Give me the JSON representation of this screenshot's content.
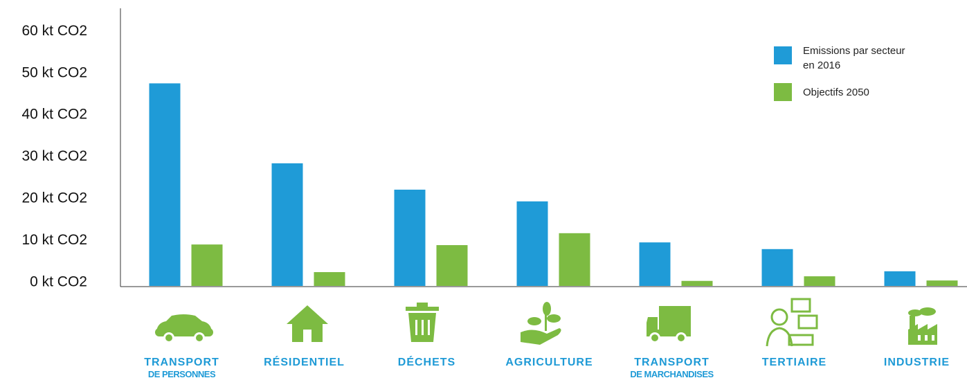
{
  "chart_data": {
    "type": "bar",
    "categories": [
      "TRANSPORT\nDE PERSONNES",
      "RÉSIDENTIEL",
      "DÉCHETS",
      "AGRICULTURE",
      "TRANSPORT\nDE MARCHANDISES",
      "TERTIAIRE",
      "INDUSTRIE"
    ],
    "series": [
      {
        "name": "Emissions par secteur\nen 2016",
        "color": "#1f9bd7",
        "values": [
          48.4,
          29.3,
          23,
          20.2,
          10.4,
          8.8,
          3.5
        ]
      },
      {
        "name": "Objectifs 2050",
        "color": "#7dbb42",
        "values": [
          9.9,
          3.3,
          9.75,
          12.6,
          1.2,
          2.3,
          1.3
        ]
      }
    ],
    "ylim": [
      0,
      66
    ],
    "yticks": [
      {
        "value": 0,
        "label": "0 kt CO2"
      },
      {
        "value": 10,
        "label": "10 kt CO2"
      },
      {
        "value": 20,
        "label": "20 kt CO2"
      },
      {
        "value": 30,
        "label": "30 kt CO2"
      },
      {
        "value": 40,
        "label": "40 kt CO2"
      },
      {
        "value": 50,
        "label": "50 kt CO2"
      },
      {
        "value": 60,
        "label": "60 kt CO2"
      }
    ],
    "legend": "top-right"
  }
}
